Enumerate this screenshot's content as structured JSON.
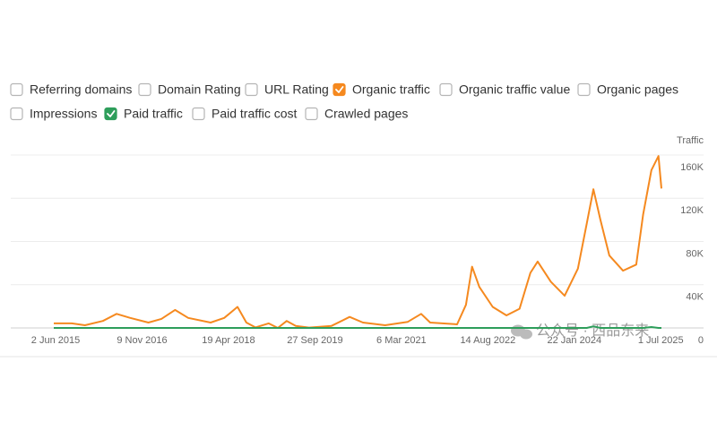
{
  "controls": [
    {
      "label": "Referring domains",
      "checked": false
    },
    {
      "label": "Domain Rating",
      "checked": false
    },
    {
      "label": "URL Rating",
      "checked": false
    },
    {
      "label": "Organic traffic",
      "checked": true,
      "color": "#f5891f"
    },
    {
      "label": "Organic traffic value",
      "checked": false
    },
    {
      "label": "Organic pages",
      "checked": false
    },
    {
      "label": "Impressions",
      "checked": false
    },
    {
      "label": "Paid traffic",
      "checked": true,
      "color": "#2e9e5b"
    },
    {
      "label": "Paid traffic cost",
      "checked": false
    },
    {
      "label": "Crawled pages",
      "checked": false
    }
  ],
  "watermark": "公众号 · 西品东来",
  "chart_data": {
    "type": "line",
    "y_label": "Traffic",
    "x": [
      "2015-05-22",
      "2015-09-08",
      "2015-11-28",
      "2016-03-16",
      "2016-06-07",
      "2016-08-29",
      "2016-12-18",
      "2017-03-07",
      "2017-05-29",
      "2017-08-17",
      "2017-12-31",
      "2018-03-24",
      "2018-06-13",
      "2018-08-06",
      "2018-09-30",
      "2018-12-19",
      "2019-02-13",
      "2019-04-08",
      "2019-06-02",
      "2019-08-22",
      "2020-01-06",
      "2020-04-25",
      "2020-07-15",
      "2020-11-27",
      "2021-04-14",
      "2021-07-04",
      "2021-08-28",
      "2022-02-08",
      "2022-04-03",
      "2022-05-10",
      "2022-06-23",
      "2022-09-12",
      "2022-12-05",
      "2023-02-23",
      "2023-04-30",
      "2023-06-13",
      "2023-09-01",
      "2023-11-24",
      "2024-02-13",
      "2024-04-07",
      "2024-05-17",
      "2024-06-28",
      "2024-08-22",
      "2024-11-13",
      "2025-02-02",
      "2025-03-16",
      "2025-05-05",
      "2025-06-17",
      "2025-07-05"
    ],
    "series": [
      {
        "name": "Organic traffic",
        "color": "#f5891f",
        "values": [
          4200,
          4200,
          2500,
          6500,
          13000,
          9300,
          5000,
          8400,
          16700,
          9300,
          5000,
          9300,
          19500,
          5000,
          500,
          4200,
          0,
          6500,
          1900,
          300,
          1900,
          10200,
          5000,
          2500,
          5600,
          13000,
          5000,
          3300,
          21400,
          56700,
          38000,
          19500,
          11600,
          17700,
          51000,
          61400,
          42800,
          29800,
          54900,
          96700,
          128300,
          100400,
          67000,
          53000,
          58600,
          105000,
          146000,
          159000,
          129000
        ]
      },
      {
        "name": "Paid traffic",
        "color": "#2e9e5b",
        "values": [
          0,
          0,
          0,
          0,
          0,
          0,
          0,
          0,
          0,
          0,
          0,
          0,
          0,
          0,
          0,
          0,
          0,
          0,
          0,
          0,
          0,
          0,
          0,
          0,
          0,
          0,
          0,
          0,
          0,
          0,
          0,
          0,
          0,
          0,
          0,
          0,
          0,
          0,
          0,
          0,
          1500,
          0,
          0,
          0,
          0,
          0,
          800,
          0,
          0
        ]
      }
    ],
    "xlim": [
      "2015-05-22",
      "2025-07-05"
    ],
    "xticks": [
      {
        "value": "2015-06-02",
        "label": "2 Jun 2015"
      },
      {
        "value": "2016-11-09",
        "label": "9 Nov 2016"
      },
      {
        "value": "2018-04-19",
        "label": "19 Apr 2018"
      },
      {
        "value": "2019-09-27",
        "label": "27 Sep 2019"
      },
      {
        "value": "2021-03-06",
        "label": "6 Mar 2021"
      },
      {
        "value": "2022-08-14",
        "label": "14 Aug 2022"
      },
      {
        "value": "2024-01-22",
        "label": "22 Jan 2024"
      },
      {
        "value": "2025-07-01",
        "label": "1 Jul 2025"
      }
    ],
    "ylim": [
      0,
      160000
    ],
    "yticks": [
      0,
      {
        "value": 40000,
        "label": "40K"
      },
      {
        "value": 80000,
        "label": "80K"
      },
      {
        "value": 120000,
        "label": "120K"
      },
      {
        "value": 160000,
        "label": "160K"
      }
    ],
    "grid": true
  }
}
